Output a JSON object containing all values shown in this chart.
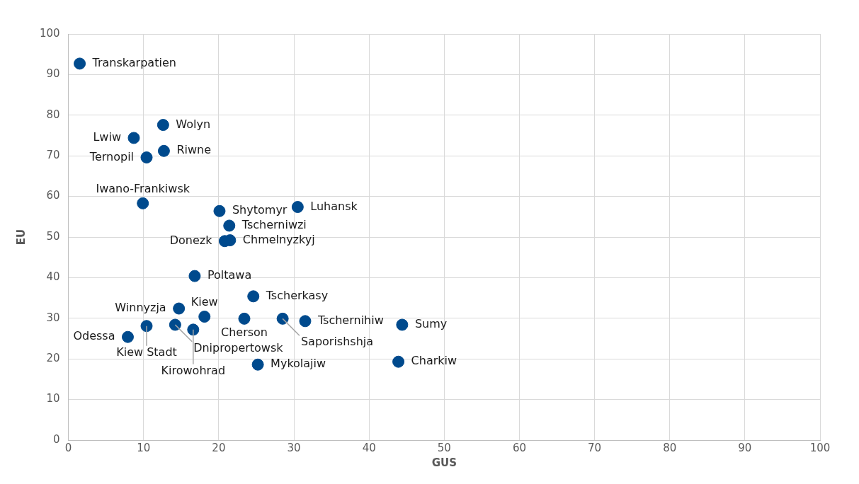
{
  "chart_data": {
    "type": "scatter",
    "xlabel": "GUS",
    "ylabel": "EU",
    "xlim": [
      0,
      100
    ],
    "ylim": [
      0,
      100
    ],
    "xticks": [
      0,
      10,
      20,
      30,
      40,
      50,
      60,
      70,
      80,
      90,
      100
    ],
    "yticks": [
      0,
      10,
      20,
      30,
      40,
      50,
      60,
      70,
      80,
      90,
      100
    ],
    "grid": true,
    "marker": "circle",
    "series": [
      {
        "color": "#004a8d",
        "x": [
          1.5,
          12.6,
          8.7,
          12.7,
          10.4,
          9.9,
          20.1,
          30.5,
          21.4,
          21.5,
          20.8,
          16.8,
          24.6,
          14.7,
          10.4,
          7.9,
          14.2,
          16.6,
          18.1,
          23.4,
          28.5,
          31.5,
          44.4,
          43.9,
          25.2
        ],
        "values": [
          92.7,
          77.6,
          74.4,
          71.2,
          69.6,
          58.3,
          56.4,
          57.4,
          52.8,
          49.2,
          49.0,
          40.4,
          35.4,
          32.4,
          28.1,
          25.4,
          28.4,
          27.2,
          30.4,
          29.9,
          29.9,
          29.3,
          28.4,
          19.3,
          18.6
        ]
      }
    ],
    "annotations": [
      {
        "text": "Transkarpatien",
        "x": 1.5,
        "y": 92.7
      },
      {
        "text": "Wolyn",
        "x": 12.6,
        "y": 77.6
      },
      {
        "text": "Lwiw",
        "x": 8.7,
        "y": 74.4
      },
      {
        "text": "Riwne",
        "x": 12.7,
        "y": 71.2
      },
      {
        "text": "Ternopil",
        "x": 10.4,
        "y": 69.6
      },
      {
        "text": "Iwano-Frankiwsk",
        "x": 9.9,
        "y": 58.3
      },
      {
        "text": "Shytomyr",
        "x": 20.1,
        "y": 56.4
      },
      {
        "text": "Luhansk",
        "x": 30.5,
        "y": 57.4
      },
      {
        "text": "Tscherniwzi",
        "x": 21.4,
        "y": 52.8
      },
      {
        "text": "Chmelnyzkyj",
        "x": 21.5,
        "y": 49.2
      },
      {
        "text": "Donezk",
        "x": 20.8,
        "y": 49.0
      },
      {
        "text": "Poltawa",
        "x": 16.8,
        "y": 40.4
      },
      {
        "text": "Tscherkasy",
        "x": 24.6,
        "y": 35.4
      },
      {
        "text": "Winnyzja",
        "x": 14.7,
        "y": 32.4
      },
      {
        "text": "Kiew Stadt",
        "x": 10.4,
        "y": 28.1
      },
      {
        "text": "Odessa",
        "x": 7.9,
        "y": 25.4
      },
      {
        "text": "Dnipropertowsk",
        "x": 14.2,
        "y": 28.4
      },
      {
        "text": "Kirowohrad",
        "x": 16.6,
        "y": 27.2
      },
      {
        "text": "Kiew",
        "x": 18.1,
        "y": 30.4
      },
      {
        "text": "Cherson",
        "x": 23.4,
        "y": 29.9
      },
      {
        "text": "Saporishshja",
        "x": 28.5,
        "y": 29.9
      },
      {
        "text": "Tschernihiw",
        "x": 31.5,
        "y": 29.3
      },
      {
        "text": "Sumy",
        "x": 44.4,
        "y": 28.4
      },
      {
        "text": "Charkiw",
        "x": 43.9,
        "y": 19.3
      },
      {
        "text": "Mykolajiw",
        "x": 25.2,
        "y": 18.6
      }
    ]
  }
}
